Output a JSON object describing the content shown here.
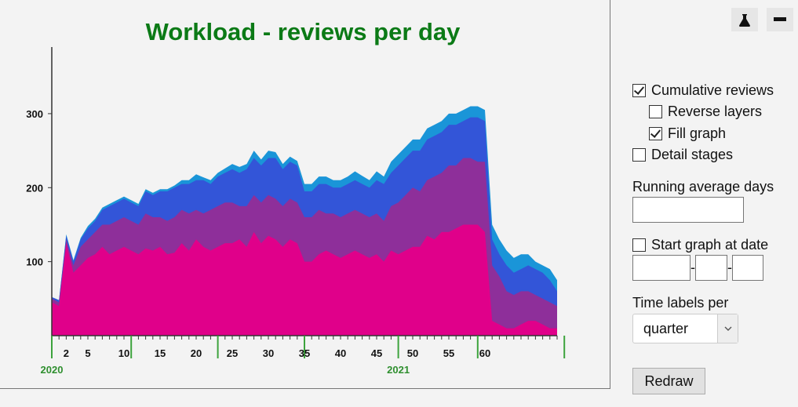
{
  "chart_data": {
    "type": "area",
    "title": "Workload - reviews per day",
    "xlabel": "",
    "ylabel": "",
    "ylim": [
      0,
      390
    ],
    "xlim": [
      0,
      70
    ],
    "y_ticks": [
      100,
      200,
      300
    ],
    "x_tick_labels": [
      {
        "label": "2",
        "x": 2
      },
      {
        "label": "5",
        "x": 5
      },
      {
        "label": "10",
        "x": 10
      },
      {
        "label": "15",
        "x": 15
      },
      {
        "label": "20",
        "x": 20
      },
      {
        "label": "25",
        "x": 25
      },
      {
        "label": "30",
        "x": 30
      },
      {
        "label": "35",
        "x": 35
      },
      {
        "label": "40",
        "x": 40
      },
      {
        "label": "45",
        "x": 45
      },
      {
        "label": "50",
        "x": 50
      },
      {
        "label": "55",
        "x": 55
      },
      {
        "label": "60",
        "x": 60
      }
    ],
    "x_year_labels": [
      {
        "label": "2020",
        "x": 0
      },
      {
        "label": "2021",
        "x": 48
      }
    ],
    "quarter_markers": [
      0,
      11,
      23,
      35,
      48,
      59,
      71
    ],
    "x": [
      0,
      1,
      2,
      3,
      4,
      5,
      6,
      7,
      8,
      9,
      10,
      11,
      12,
      13,
      14,
      15,
      16,
      17,
      18,
      19,
      20,
      21,
      22,
      23,
      24,
      25,
      26,
      27,
      28,
      29,
      30,
      31,
      32,
      33,
      34,
      35,
      36,
      37,
      38,
      39,
      40,
      41,
      42,
      43,
      44,
      45,
      46,
      47,
      48,
      49,
      50,
      51,
      52,
      53,
      54,
      55,
      56,
      57,
      58,
      59,
      60,
      61,
      62,
      63,
      64,
      65,
      66,
      67,
      68,
      69,
      70
    ],
    "series": [
      {
        "values": [
          45,
          40,
          125,
          85,
          95,
          105,
          110,
          120,
          110,
          115,
          120,
          115,
          110,
          118,
          115,
          120,
          110,
          112,
          125,
          115,
          130,
          120,
          115,
          120,
          125,
          125,
          130,
          120,
          140,
          125,
          135,
          130,
          120,
          130,
          125,
          100,
          100,
          110,
          115,
          110,
          105,
          110,
          115,
          110,
          105,
          110,
          100,
          115,
          110,
          115,
          120,
          120,
          135,
          130,
          140,
          140,
          145,
          150,
          150,
          150,
          140,
          20,
          15,
          10,
          10,
          15,
          20,
          20,
          15,
          10,
          10
        ],
        "color": "#e0008a"
      },
      {
        "values": [
          50,
          45,
          130,
          95,
          120,
          130,
          140,
          150,
          150,
          155,
          160,
          155,
          150,
          165,
          160,
          160,
          155,
          160,
          170,
          165,
          170,
          165,
          170,
          175,
          180,
          180,
          175,
          175,
          190,
          180,
          190,
          185,
          175,
          185,
          180,
          160,
          160,
          170,
          165,
          165,
          160,
          165,
          170,
          165,
          160,
          165,
          155,
          175,
          180,
          190,
          200,
          195,
          210,
          215,
          220,
          230,
          230,
          240,
          240,
          235,
          235,
          95,
          80,
          60,
          55,
          60,
          60,
          55,
          50,
          45,
          40
        ],
        "color": "#8e2f9a"
      },
      {
        "values": [
          52,
          48,
          135,
          100,
          130,
          145,
          155,
          170,
          175,
          180,
          185,
          180,
          175,
          195,
          190,
          195,
          195,
          200,
          205,
          205,
          210,
          210,
          205,
          215,
          220,
          225,
          220,
          225,
          240,
          230,
          240,
          240,
          225,
          235,
          230,
          195,
          195,
          205,
          205,
          200,
          200,
          205,
          210,
          205,
          200,
          210,
          205,
          220,
          230,
          240,
          250,
          250,
          265,
          270,
          275,
          285,
          285,
          290,
          295,
          295,
          290,
          130,
          110,
          95,
          85,
          90,
          95,
          90,
          85,
          75,
          60
        ],
        "color": "#3355d8"
      },
      {
        "values": [
          52,
          48,
          137,
          102,
          132,
          148,
          158,
          173,
          178,
          183,
          188,
          183,
          178,
          198,
          193,
          198,
          198,
          203,
          210,
          210,
          218,
          214,
          210,
          220,
          226,
          232,
          228,
          232,
          250,
          238,
          250,
          248,
          232,
          242,
          236,
          205,
          205,
          215,
          215,
          210,
          210,
          215,
          222,
          216,
          210,
          222,
          215,
          235,
          245,
          255,
          265,
          265,
          280,
          285,
          290,
          300,
          300,
          305,
          310,
          310,
          305,
          150,
          130,
          115,
          105,
          110,
          110,
          100,
          95,
          90,
          75
        ],
        "color": "#1a95d8"
      }
    ]
  },
  "controls": {
    "cumulative_reviews": {
      "label": "Cumulative reviews",
      "checked": true
    },
    "reverse_layers": {
      "label": "Reverse layers",
      "checked": false
    },
    "fill_graph": {
      "label": "Fill graph",
      "checked": true
    },
    "detail_stages": {
      "label": "Detail stages",
      "checked": false
    },
    "running_average_label": "Running average days",
    "running_average_value": "",
    "start_graph": {
      "label": "Start graph at date",
      "checked": false
    },
    "start_date": {
      "year": "",
      "month": "",
      "day": ""
    },
    "date_separator": "-",
    "time_labels_label": "Time labels per",
    "time_labels_value": "quarter",
    "redraw_label": "Redraw"
  },
  "toolbar": {
    "experiment_icon": "flask-icon",
    "minimize_icon": "minus-icon"
  }
}
